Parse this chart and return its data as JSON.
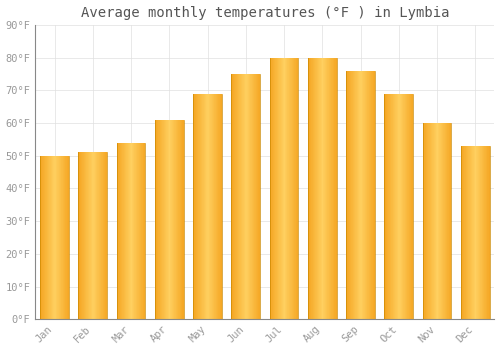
{
  "title": "Average monthly temperatures (°F ) in Lymbia",
  "months": [
    "Jan",
    "Feb",
    "Mar",
    "Apr",
    "May",
    "Jun",
    "Jul",
    "Aug",
    "Sep",
    "Oct",
    "Nov",
    "Dec"
  ],
  "values": [
    50,
    51,
    54,
    61,
    69,
    75,
    80,
    80,
    76,
    69,
    60,
    53
  ],
  "bar_color_left": "#F5A623",
  "bar_color_center": "#FFD060",
  "bar_color_right": "#E8900A",
  "background_color": "#FFFFFF",
  "grid_color": "#E0E0E0",
  "ylim": [
    0,
    90
  ],
  "yticks": [
    0,
    10,
    20,
    30,
    40,
    50,
    60,
    70,
    80,
    90
  ],
  "ytick_labels": [
    "0°F",
    "10°F",
    "20°F",
    "30°F",
    "40°F",
    "50°F",
    "60°F",
    "70°F",
    "80°F",
    "90°F"
  ],
  "title_fontsize": 10,
  "tick_fontsize": 7.5,
  "tick_color": "#999999",
  "title_color": "#555555",
  "bar_width": 0.75
}
